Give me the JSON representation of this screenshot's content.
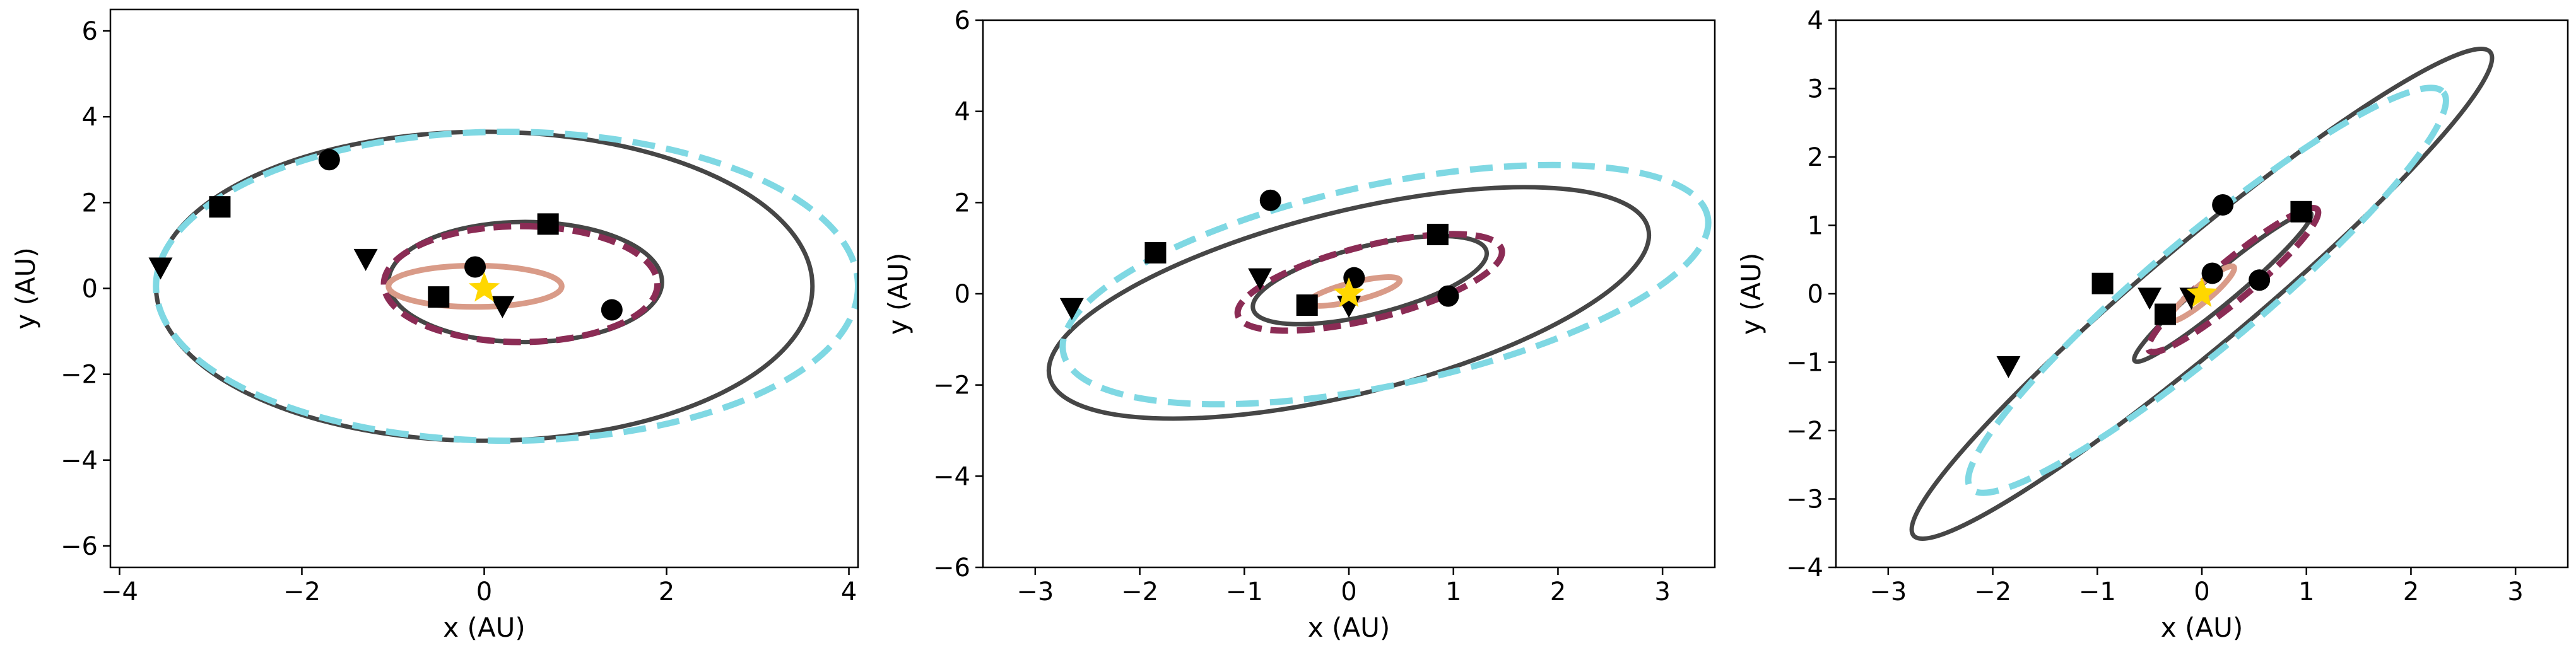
{
  "colors": {
    "dark_orbit": "#464646",
    "cyan_orbit": "#7fd8e3",
    "maroon_orbit": "#8b2c55",
    "inner_orbit": "#d99b88",
    "star": "#ffd700",
    "marker": "#000000"
  },
  "chart_data": [
    {
      "type": "scatter",
      "xlabel": "x (AU)",
      "ylabel": "y (AU)",
      "xlim": [
        -4.1,
        4.1
      ],
      "ylim": [
        -6.5,
        6.5
      ],
      "xticks": [
        -4,
        -2,
        0,
        2,
        4
      ],
      "yticks": [
        -6,
        -4,
        -2,
        0,
        2,
        4,
        6
      ],
      "xtick_labels": [
        "−4",
        "−2",
        "0",
        "2",
        "4"
      ],
      "ytick_labels": [
        "−6",
        "−4",
        "−2",
        "0",
        "2",
        "4",
        "6"
      ],
      "orbits": [
        {
          "style": "dark",
          "cx": -0.0,
          "cy": 0.05,
          "a": 3.6,
          "b": 3.6,
          "angle": 0
        },
        {
          "style": "cyan-dashed",
          "cx": 0.25,
          "cy": 0.05,
          "a": 3.85,
          "b": 3.6,
          "angle": 0
        },
        {
          "style": "dark",
          "cx": 0.45,
          "cy": 0.15,
          "a": 1.5,
          "b": 1.4,
          "angle": 0
        },
        {
          "style": "maroon-dashed",
          "cx": 0.4,
          "cy": 0.1,
          "a": 1.5,
          "b": 1.35,
          "angle": 0
        },
        {
          "style": "inner",
          "cx": -0.1,
          "cy": 0.05,
          "a": 0.95,
          "b": 0.48,
          "angle": 0
        }
      ],
      "markers": [
        {
          "shape": "circle",
          "x": -1.7,
          "y": 3.0
        },
        {
          "shape": "square",
          "x": -2.9,
          "y": 1.9
        },
        {
          "shape": "triangle",
          "x": -3.55,
          "y": 0.5
        },
        {
          "shape": "square",
          "x": 0.7,
          "y": 1.5
        },
        {
          "shape": "triangle",
          "x": -1.3,
          "y": 0.7
        },
        {
          "shape": "circle",
          "x": 1.4,
          "y": -0.5
        },
        {
          "shape": "circle",
          "x": -0.1,
          "y": 0.5
        },
        {
          "shape": "square",
          "x": -0.5,
          "y": -0.2
        },
        {
          "shape": "triangle",
          "x": 0.2,
          "y": -0.4
        }
      ],
      "star": {
        "x": 0,
        "y": 0
      }
    },
    {
      "type": "scatter",
      "xlabel": "x (AU)",
      "ylabel": "y (AU)",
      "xlim": [
        -3.5,
        3.5
      ],
      "ylim": [
        -6,
        6
      ],
      "xticks": [
        -3,
        -2,
        -1,
        0,
        1,
        2,
        3
      ],
      "yticks": [
        -6,
        -4,
        -2,
        0,
        2,
        4,
        6
      ],
      "xtick_labels": [
        "−3",
        "−2",
        "−1",
        "0",
        "1",
        "2",
        "3"
      ],
      "ytick_labels": [
        "−6",
        "−4",
        "−2",
        "0",
        "2",
        "4",
        "6"
      ],
      "orbits": [
        {
          "style": "dark",
          "cx": 0.0,
          "cy": -0.2,
          "a": 2.95,
          "b": 2.0,
          "angle": 14
        },
        {
          "style": "cyan-dashed",
          "cx": 0.35,
          "cy": 0.2,
          "a": 3.15,
          "b": 2.2,
          "angle": 12
        },
        {
          "style": "dark",
          "cx": 0.2,
          "cy": 0.3,
          "a": 1.15,
          "b": 0.75,
          "angle": 14
        },
        {
          "style": "maroon-dashed",
          "cx": 0.2,
          "cy": 0.25,
          "a": 1.3,
          "b": 0.8,
          "angle": 14
        },
        {
          "style": "inner",
          "cx": 0.05,
          "cy": 0.05,
          "a": 0.45,
          "b": 0.2,
          "angle": 14
        }
      ],
      "markers": [
        {
          "shape": "circle",
          "x": -0.75,
          "y": 2.05
        },
        {
          "shape": "square",
          "x": -1.85,
          "y": 0.9
        },
        {
          "shape": "triangle",
          "x": -2.65,
          "y": -0.3
        },
        {
          "shape": "square",
          "x": 0.85,
          "y": 1.3
        },
        {
          "shape": "triangle",
          "x": -0.85,
          "y": 0.35
        },
        {
          "shape": "circle",
          "x": 0.95,
          "y": -0.05
        },
        {
          "shape": "circle",
          "x": 0.05,
          "y": 0.35
        },
        {
          "shape": "square",
          "x": -0.4,
          "y": -0.25
        },
        {
          "shape": "triangle",
          "x": 0.0,
          "y": -0.25
        }
      ],
      "star": {
        "x": 0,
        "y": 0
      }
    },
    {
      "type": "scatter",
      "xlabel": "x (AU)",
      "ylabel": "y (AU)",
      "xlim": [
        -3.5,
        3.5
      ],
      "ylim": [
        -4,
        4
      ],
      "xticks": [
        -3,
        -2,
        -1,
        0,
        1,
        2,
        3
      ],
      "yticks": [
        -4,
        -3,
        -2,
        -1,
        0,
        1,
        2,
        3,
        4
      ],
      "xtick_labels": [
        "−3",
        "−2",
        "−1",
        "0",
        "1",
        "2",
        "3"
      ],
      "ytick_labels": [
        "−4",
        "−3",
        "−2",
        "−1",
        "0",
        "1",
        "2",
        "3",
        "4"
      ],
      "orbits": [
        {
          "style": "dark",
          "cx": 0.0,
          "cy": 0.0,
          "a": 3.6,
          "b": 0.75,
          "angle": 40
        },
        {
          "style": "cyan-dashed",
          "cx": 0.05,
          "cy": 0.05,
          "a": 2.95,
          "b": 0.8,
          "angle": 40
        },
        {
          "style": "dark",
          "cx": 0.2,
          "cy": 0.1,
          "a": 1.1,
          "b": 0.22,
          "angle": 40
        },
        {
          "style": "maroon-dashed",
          "cx": 0.3,
          "cy": 0.2,
          "a": 1.05,
          "b": 0.28,
          "angle": 40
        },
        {
          "style": "inner",
          "cx": 0.0,
          "cy": 0.0,
          "a": 0.4,
          "b": 0.12,
          "angle": 40
        }
      ],
      "markers": [
        {
          "shape": "circle",
          "x": 0.2,
          "y": 1.3
        },
        {
          "shape": "square",
          "x": -0.95,
          "y": 0.15
        },
        {
          "shape": "triangle",
          "x": -1.85,
          "y": -1.05
        },
        {
          "shape": "square",
          "x": 0.95,
          "y": 1.2
        },
        {
          "shape": "triangle",
          "x": -0.5,
          "y": -0.05
        },
        {
          "shape": "circle",
          "x": 0.55,
          "y": 0.2
        },
        {
          "shape": "circle",
          "x": 0.1,
          "y": 0.3
        },
        {
          "shape": "square",
          "x": -0.35,
          "y": -0.3
        },
        {
          "shape": "triangle",
          "x": -0.1,
          "y": -0.05
        }
      ],
      "star": {
        "x": 0,
        "y": 0
      }
    }
  ]
}
